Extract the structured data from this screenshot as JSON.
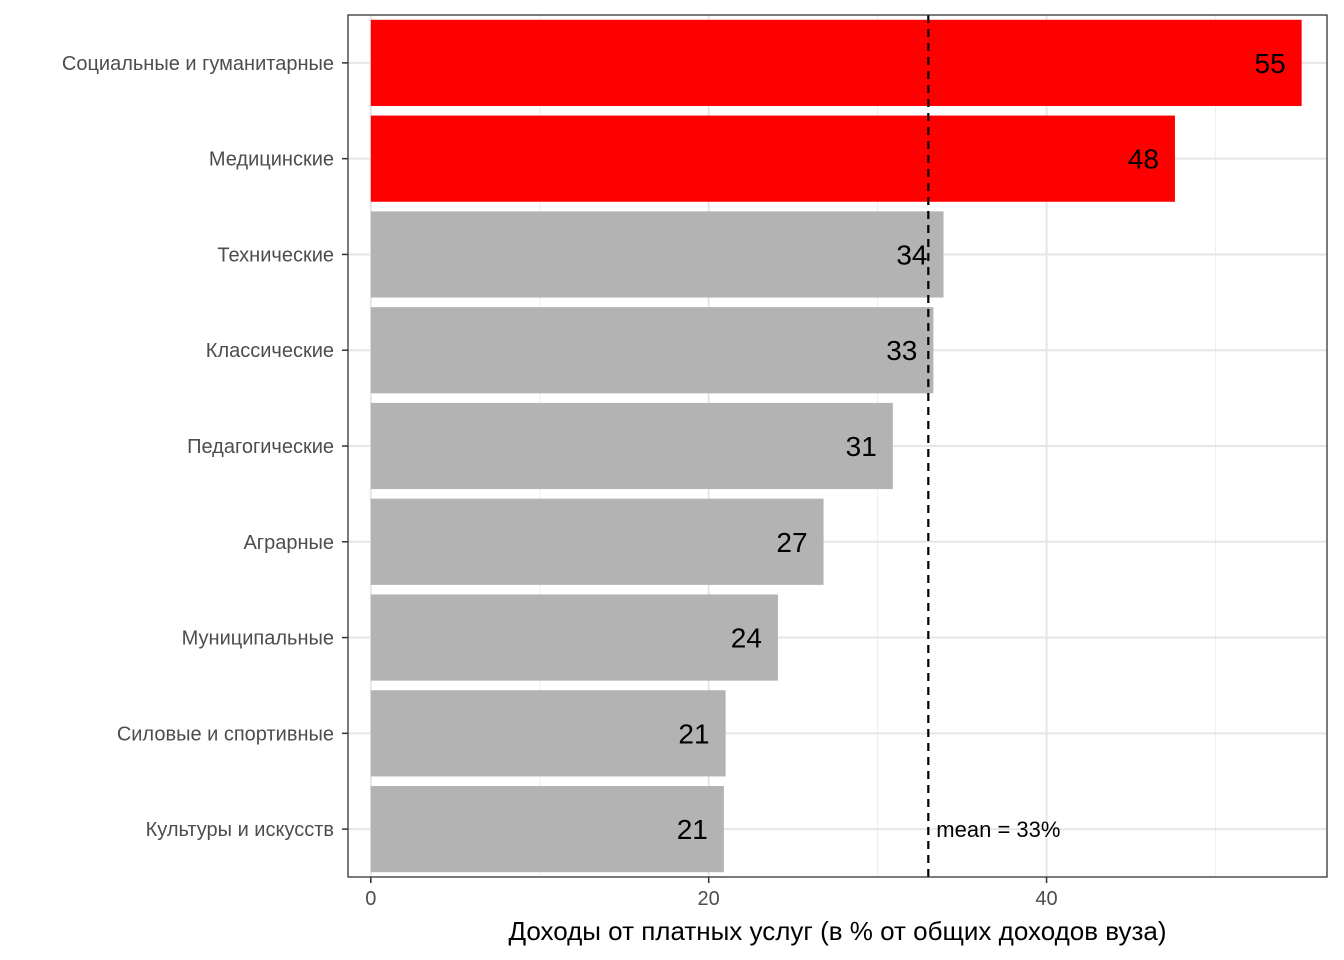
{
  "chart_data": {
    "type": "bar",
    "orientation": "horizontal",
    "xlabel": "Доходы от платных услуг (в % от общих доходов вуза)",
    "ylabel": "",
    "xlim": [
      -1.35,
      56.6
    ],
    "xticks": [
      0,
      20,
      40
    ],
    "grid": true,
    "categories": [
      "Социальные и гуманитарные",
      "Медицинские",
      "Технические",
      "Классические",
      "Педагогические",
      "Аграрные",
      "Муниципальные",
      "Силовые и спортивные",
      "Культуры и искусств"
    ],
    "values": [
      55.1,
      47.6,
      33.9,
      33.3,
      30.9,
      26.8,
      24.1,
      21.0,
      20.9
    ],
    "labels": [
      "55",
      "48",
      "34",
      "33",
      "31",
      "27",
      "24",
      "21",
      "21"
    ],
    "highlighted": [
      true,
      true,
      false,
      false,
      false,
      false,
      false,
      false,
      false
    ],
    "colors": {
      "highlight": "#ff0000",
      "default": "#b3b3b3"
    },
    "reference_line": {
      "value": 33,
      "style": "dashed",
      "label": "mean = 33%"
    }
  }
}
